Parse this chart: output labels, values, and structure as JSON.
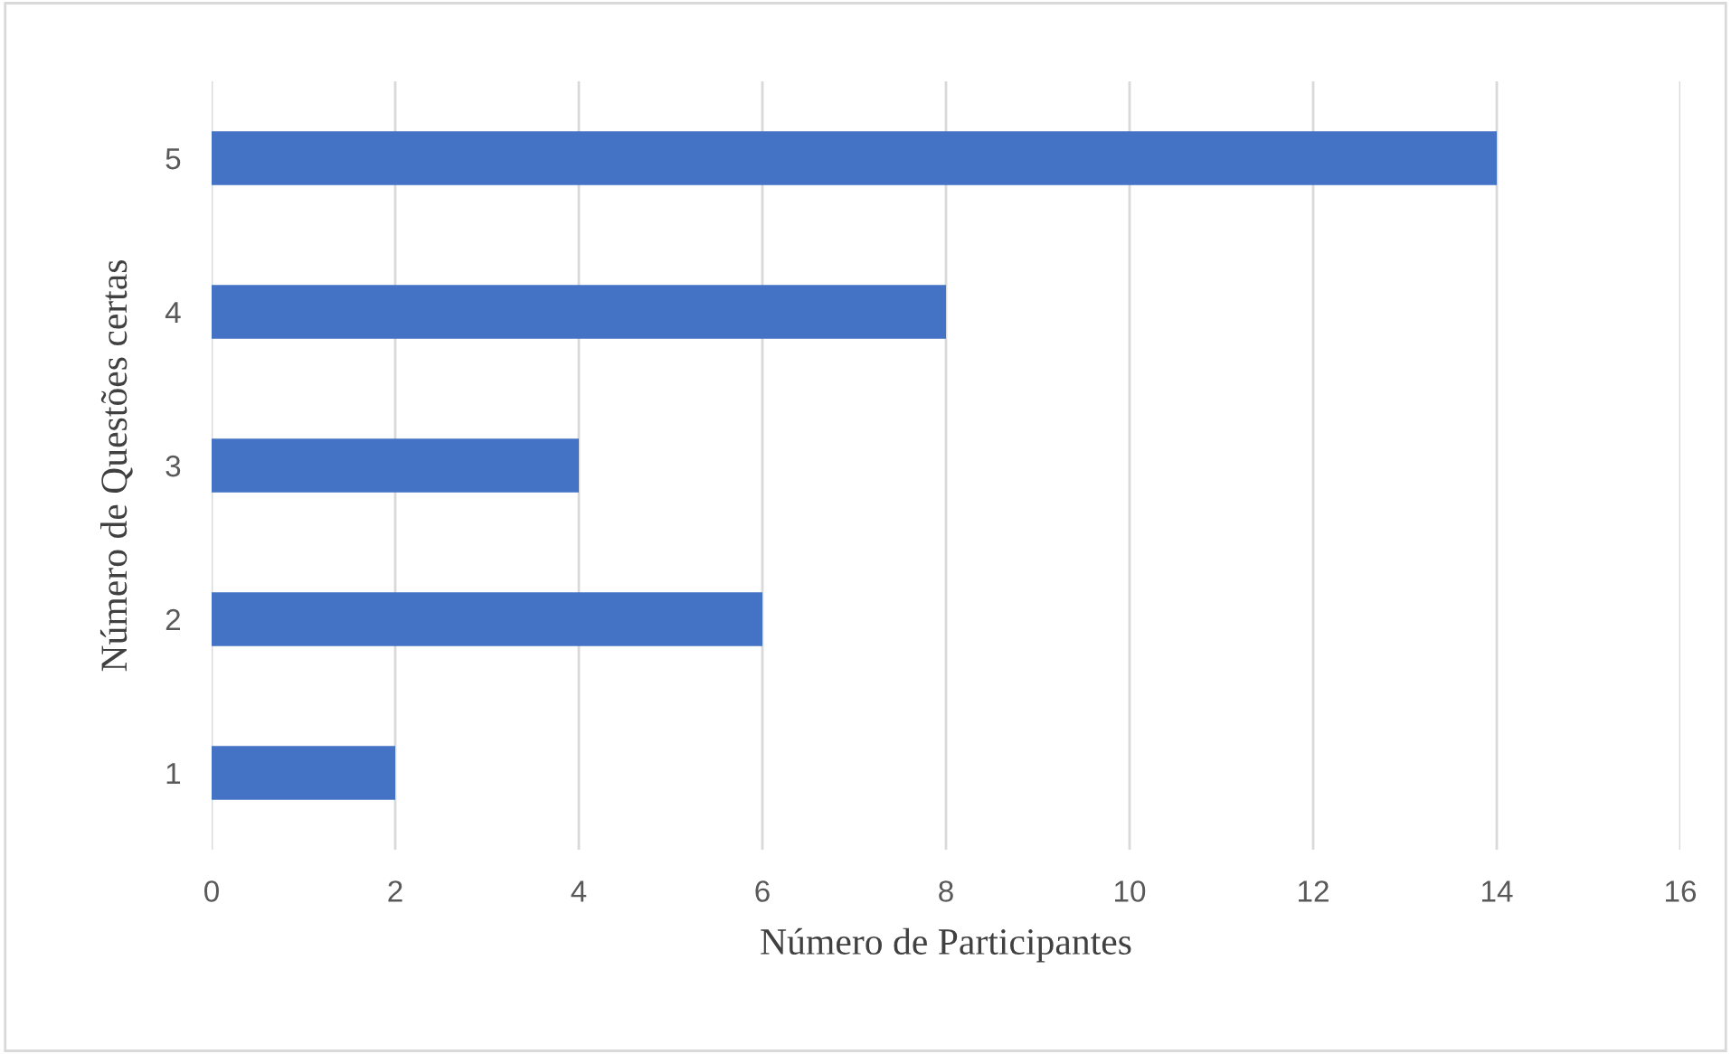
{
  "chart_data": {
    "type": "bar",
    "orientation": "horizontal",
    "xlabel": "Número de Participantes",
    "ylabel": "Número de Questões certas",
    "categories": [
      "5",
      "4",
      "3",
      "2",
      "1"
    ],
    "values": [
      14,
      8,
      4,
      6,
      2
    ],
    "color": "#4472c4",
    "xlim": [
      0,
      16
    ],
    "xticks": [
      0,
      2,
      4,
      6,
      8,
      10,
      12,
      14,
      16
    ],
    "grid": "x",
    "legend": false
  }
}
